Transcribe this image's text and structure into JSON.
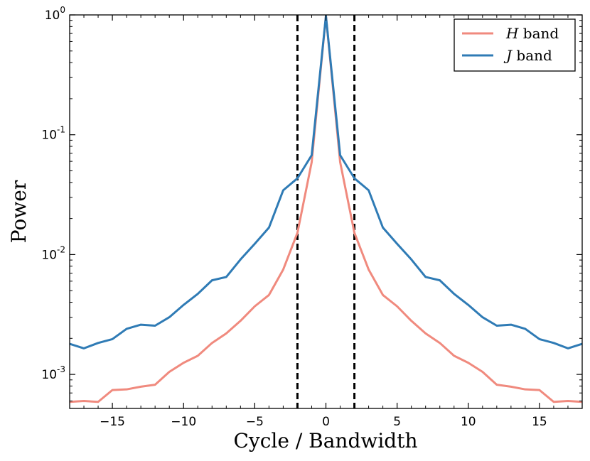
{
  "chart_data": {
    "type": "line",
    "xlabel": "Cycle / Bandwidth",
    "ylabel": "Power",
    "xlim": [
      -18,
      18
    ],
    "ylim": [
      0.00052,
      1.0
    ],
    "yscale": "log",
    "grid": false,
    "legend_position": "top-right",
    "x_ticks": [
      -15,
      -10,
      -5,
      0,
      5,
      10,
      15
    ],
    "x_tick_labels": [
      "−15",
      "−10",
      "−5",
      "0",
      "5",
      "10",
      "15"
    ],
    "y_ticks": [
      {
        "value": 1,
        "base": "10",
        "exp": "0"
      },
      {
        "value": 0.1,
        "base": "10",
        "exp": "-1"
      },
      {
        "value": 0.01,
        "base": "10",
        "exp": "-2"
      },
      {
        "value": 0.001,
        "base": "10",
        "exp": "-3"
      }
    ],
    "vlines": [
      -2,
      2
    ],
    "x": [
      -18,
      -17,
      -16,
      -15,
      -14,
      -13,
      -12,
      -11,
      -10,
      -9,
      -8,
      -7,
      -6,
      -5,
      -4,
      -3,
      -2,
      -1,
      0,
      1,
      2,
      3,
      4,
      5,
      6,
      7,
      8,
      9,
      10,
      11,
      12,
      13,
      14,
      15,
      16,
      17,
      18
    ],
    "series": [
      {
        "name_italic": "H",
        "name_rest": " band",
        "color": "#f08a7e",
        "values": [
          0.00059,
          0.0006,
          0.00059,
          0.00074,
          0.00075,
          0.00079,
          0.00082,
          0.00105,
          0.00125,
          0.00143,
          0.00183,
          0.0022,
          0.0028,
          0.0037,
          0.0046,
          0.0075,
          0.0152,
          0.059,
          0.98,
          0.059,
          0.0152,
          0.0075,
          0.0046,
          0.0037,
          0.0028,
          0.0022,
          0.00183,
          0.00143,
          0.00125,
          0.00105,
          0.00082,
          0.00079,
          0.00075,
          0.00074,
          0.00059,
          0.0006,
          0.00059
        ]
      },
      {
        "name_italic": "J",
        "name_rest": " band",
        "color": "#2f7bb5",
        "values": [
          0.0018,
          0.00165,
          0.00183,
          0.00197,
          0.0024,
          0.0026,
          0.00255,
          0.003,
          0.0038,
          0.0047,
          0.0061,
          0.0065,
          0.0091,
          0.0123,
          0.0168,
          0.0344,
          0.0433,
          0.0675,
          0.98,
          0.0675,
          0.0433,
          0.0344,
          0.0168,
          0.0123,
          0.0091,
          0.0065,
          0.0061,
          0.0047,
          0.0038,
          0.003,
          0.00255,
          0.0026,
          0.0024,
          0.00197,
          0.00183,
          0.00165,
          0.0018
        ]
      }
    ]
  }
}
